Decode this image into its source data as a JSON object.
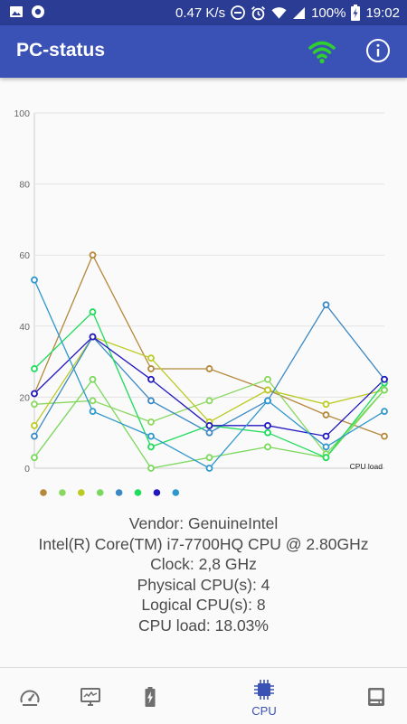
{
  "status_bar": {
    "net_speed": "0.47 K/s",
    "battery_percent": "100%",
    "time": "19:02",
    "icons": [
      "image-icon",
      "record-icon",
      "minus-circle-icon",
      "alarm-icon",
      "wifi-icon",
      "signal-icon",
      "battery-charging-icon"
    ]
  },
  "app_bar": {
    "title": "PC-status",
    "wifi_color": "#2fcf2f",
    "icons": [
      "wifi-icon",
      "info-icon"
    ]
  },
  "chart_data": {
    "type": "line",
    "x": [
      1,
      2,
      3,
      4,
      5,
      6,
      7
    ],
    "ylim": [
      0,
      100
    ],
    "yticks": [
      0,
      20,
      40,
      60,
      80,
      100
    ],
    "grid": true,
    "legend": "bottom-left",
    "annotation": "CPU load",
    "series": [
      {
        "color": "#b5883c",
        "values": [
          21,
          60,
          28,
          28,
          22,
          15,
          9
        ]
      },
      {
        "color": "#8ad860",
        "values": [
          18,
          19,
          13,
          19,
          25,
          4,
          22
        ]
      },
      {
        "color": "#bccb22",
        "values": [
          12,
          37,
          31,
          13,
          22,
          18,
          22
        ]
      },
      {
        "color": "#7ad85c",
        "values": [
          3,
          25,
          0,
          3,
          6,
          3,
          22
        ]
      },
      {
        "color": "#3b88c4",
        "values": [
          9,
          37,
          19,
          10,
          19,
          46,
          25
        ]
      },
      {
        "color": "#20dc5c",
        "values": [
          28,
          44,
          6,
          12,
          10,
          3,
          24
        ]
      },
      {
        "color": "#2218c0",
        "values": [
          21,
          37,
          25,
          12,
          12,
          9,
          25
        ]
      },
      {
        "color": "#2e98cc",
        "values": [
          53,
          16,
          9,
          0,
          19,
          6,
          16
        ]
      }
    ]
  },
  "info": {
    "vendor": "Vendor: GenuineIntel",
    "model": "Intel(R) Core(TM) i7-7700HQ CPU @ 2.80GHz",
    "clock": "Clock: 2,8 GHz",
    "physical": "Physical CPU(s): 4",
    "logical": "Logical CPU(s): 8",
    "load": "CPU load: 18.03%"
  },
  "bottom_nav": {
    "active_color": "#3a52b5",
    "items": [
      {
        "icon": "speedometer-icon",
        "label": ""
      },
      {
        "icon": "monitor-icon",
        "label": ""
      },
      {
        "icon": "battery-icon",
        "label": ""
      },
      {
        "icon": "cpu-icon",
        "label": "CPU"
      },
      {
        "icon": "hard-drive-icon",
        "label": ""
      }
    ]
  }
}
